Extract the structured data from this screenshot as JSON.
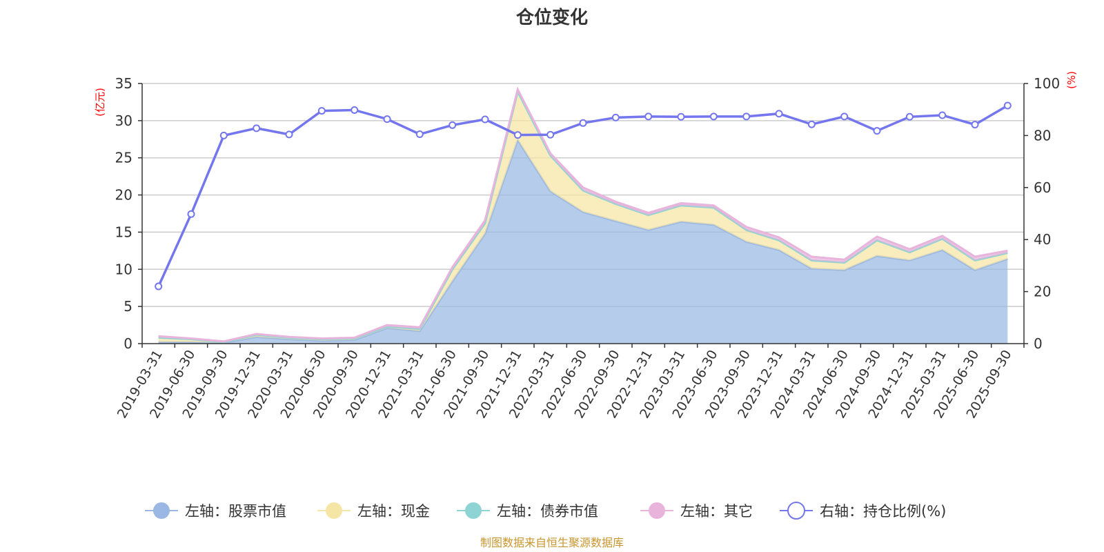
{
  "chart_data": {
    "type": "area",
    "title": "仓位变化",
    "left_unit": "(亿元)",
    "right_unit": "(%)",
    "categories": [
      "2019-03-31",
      "2019-06-30",
      "2019-09-30",
      "2019-12-31",
      "2020-03-31",
      "2020-06-30",
      "2020-09-30",
      "2020-12-31",
      "2021-03-31",
      "2021-06-30",
      "2021-09-30",
      "2021-12-31",
      "2022-03-31",
      "2022-06-30",
      "2022-09-30",
      "2022-12-31",
      "2023-03-31",
      "2023-06-30",
      "2023-09-30",
      "2023-12-31",
      "2024-03-31",
      "2024-06-30",
      "2024-09-30",
      "2024-12-31",
      "2025-03-31",
      "2025-06-30",
      "2025-09-30"
    ],
    "left_axis": {
      "min": 0,
      "max": 35,
      "ticks": [
        0,
        5,
        10,
        15,
        20,
        25,
        30,
        35
      ]
    },
    "right_axis": {
      "min": 0,
      "max": 100,
      "ticks": [
        0,
        20,
        40,
        60,
        80,
        100
      ]
    },
    "series": [
      {
        "name": "左轴：股票市值",
        "axis": "left",
        "stack": true,
        "color": "#9ab8e3",
        "values": [
          0.2,
          0.2,
          0.1,
          0.9,
          0.6,
          0.4,
          0.5,
          2.1,
          1.7,
          8.4,
          14.8,
          27.4,
          20.5,
          17.7,
          16.5,
          15.3,
          16.4,
          16.0,
          13.7,
          12.6,
          10.1,
          9.9,
          11.8,
          11.2,
          12.6,
          9.9,
          11.4
        ]
      },
      {
        "name": "左轴：现金",
        "axis": "left",
        "stack": true,
        "color": "#f6e6a5",
        "values": [
          0.6,
          0.4,
          0.1,
          0.3,
          0.2,
          0.2,
          0.2,
          0.2,
          0.3,
          1.6,
          1.4,
          6.5,
          4.8,
          2.9,
          2.3,
          2.0,
          2.2,
          2.3,
          1.6,
          1.3,
          1.1,
          1.0,
          2.1,
          1.1,
          1.5,
          1.3,
          0.8
        ]
      },
      {
        "name": "左轴：债券市值",
        "axis": "left",
        "stack": true,
        "color": "#8fd4d4",
        "values": [
          0,
          0,
          0,
          0,
          0,
          0,
          0,
          0,
          0,
          0,
          0,
          0,
          0,
          0,
          0,
          0,
          0,
          0,
          0,
          0,
          0,
          0,
          0,
          0,
          0,
          0,
          0
        ]
      },
      {
        "name": "左轴：其它",
        "axis": "left",
        "stack": true,
        "color": "#e8b4dc",
        "values": [
          0.2,
          0.1,
          0.1,
          0.1,
          0.1,
          0.1,
          0.1,
          0.2,
          0.2,
          0.3,
          0.4,
          0.3,
          0.3,
          0.4,
          0.3,
          0.3,
          0.3,
          0.3,
          0.4,
          0.4,
          0.5,
          0.4,
          0.5,
          0.4,
          0.4,
          0.5,
          0.3
        ]
      },
      {
        "name": "右轴：持仓比例(%)",
        "axis": "right",
        "type": "line",
        "color": "#7476ee",
        "values": [
          22.0,
          49.8,
          80.0,
          82.8,
          80.4,
          89.5,
          89.8,
          86.3,
          80.5,
          84.0,
          86.2,
          80.2,
          80.3,
          84.8,
          86.9,
          87.3,
          87.2,
          87.3,
          87.3,
          88.4,
          84.3,
          87.3,
          81.8,
          87.2,
          87.8,
          84.2,
          91.5
        ]
      }
    ],
    "legend_position": "bottom"
  },
  "footer": {
    "source": "制图数据来自恒生聚源数据库"
  }
}
